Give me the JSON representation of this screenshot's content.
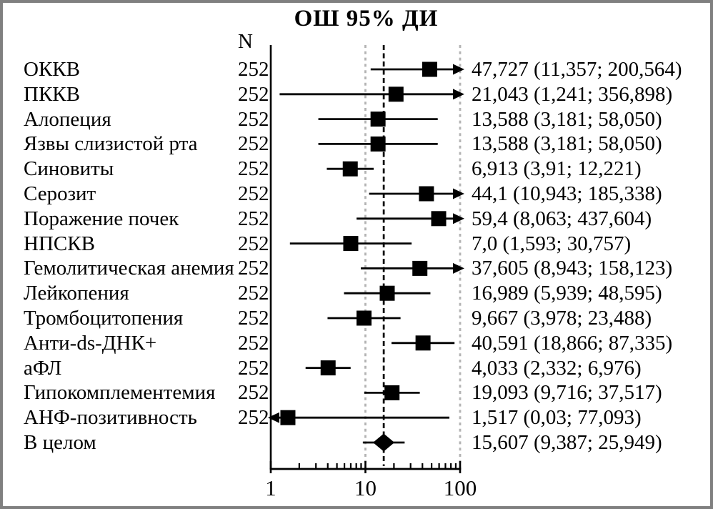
{
  "title": "ОШ 95% ДИ",
  "n_header": "N",
  "colors": {
    "ink": "#000000",
    "frame_border": "#808080",
    "dotted_grid": "#b3b3b3",
    "background": "#ffffff"
  },
  "chart_data": {
    "type": "forest",
    "title": "ОШ 95% ДИ",
    "x_axis": {
      "scale": "log",
      "range": [
        1,
        100
      ],
      "ticks": [
        1,
        10,
        100
      ],
      "tick_labels": [
        "1",
        "10",
        "100"
      ],
      "minor_ticks": [
        2,
        3,
        4,
        5,
        6,
        7,
        8,
        9,
        20,
        30,
        40,
        50,
        60,
        70,
        80,
        90
      ],
      "dotted_gridlines": [
        10,
        100
      ],
      "dashed_reference": 15.607
    },
    "rows": [
      {
        "label": "ОККВ",
        "n": "252",
        "or": 47.727,
        "lo": 11.357,
        "hi": 200.564,
        "marker": "square",
        "text": "47,727 (11,357; 200,564)"
      },
      {
        "label": "ПККВ",
        "n": "252",
        "or": 21.043,
        "lo": 1.241,
        "hi": 356.898,
        "marker": "square",
        "text": "21,043 (1,241; 356,898)"
      },
      {
        "label": "Алопеция",
        "n": "252",
        "or": 13.588,
        "lo": 3.181,
        "hi": 58.05,
        "marker": "square",
        "text": "13,588 (3,181; 58,050)"
      },
      {
        "label": "Язвы слизистой рта",
        "n": "252",
        "or": 13.588,
        "lo": 3.181,
        "hi": 58.05,
        "marker": "square",
        "text": "13,588 (3,181; 58,050)"
      },
      {
        "label": "Синовиты",
        "n": "252",
        "or": 6.913,
        "lo": 3.91,
        "hi": 12.221,
        "marker": "square",
        "text": "6,913 (3,91; 12,221)"
      },
      {
        "label": "Серозит",
        "n": "252",
        "or": 44.1,
        "lo": 10.943,
        "hi": 185.338,
        "marker": "square",
        "text": "44,1 (10,943; 185,338)"
      },
      {
        "label": "Поражение почек",
        "n": "252",
        "or": 59.4,
        "lo": 8.063,
        "hi": 437.604,
        "marker": "square",
        "text": "59,4 (8,063; 437,604)"
      },
      {
        "label": "НПСКВ",
        "n": "252",
        "or": 7.0,
        "lo": 1.593,
        "hi": 30.757,
        "marker": "square",
        "text": "7,0 (1,593; 30,757)"
      },
      {
        "label": "Гемолитическая анемия",
        "n": "252",
        "or": 37.605,
        "lo": 8.943,
        "hi": 158.123,
        "marker": "square",
        "text": "37,605 (8,943; 158,123)"
      },
      {
        "label": "Лейкопения",
        "n": "252",
        "or": 16.989,
        "lo": 5.939,
        "hi": 48.595,
        "marker": "square",
        "text": "16,989 (5,939; 48,595)"
      },
      {
        "label": "Тромбоцитопения",
        "n": "252",
        "or": 9.667,
        "lo": 3.978,
        "hi": 23.488,
        "marker": "square",
        "text": "9,667 (3,978; 23,488)"
      },
      {
        "label": "Анти-ds-ДНК+",
        "n": "252",
        "or": 40.591,
        "lo": 18.866,
        "hi": 87.335,
        "marker": "square",
        "text": "40,591 (18,866; 87,335)"
      },
      {
        "label": "аФЛ",
        "n": "252",
        "or": 4.033,
        "lo": 2.332,
        "hi": 6.976,
        "marker": "square",
        "text": "4,033 (2,332; 6,976)"
      },
      {
        "label": "Гипокомплементемия",
        "n": "252",
        "or": 19.093,
        "lo": 9.716,
        "hi": 37.517,
        "marker": "square",
        "text": "19,093 (9,716; 37,517)"
      },
      {
        "label": "АНФ-позитивность",
        "n": "252",
        "or": 1.517,
        "lo": 0.03,
        "hi": 77.093,
        "marker": "square",
        "text": "1,517 (0,03; 77,093)"
      },
      {
        "label": "В целом",
        "n": "",
        "or": 15.607,
        "lo": 9.387,
        "hi": 25.949,
        "marker": "diamond",
        "text": "15,607 (9,387; 25,949)"
      }
    ]
  }
}
